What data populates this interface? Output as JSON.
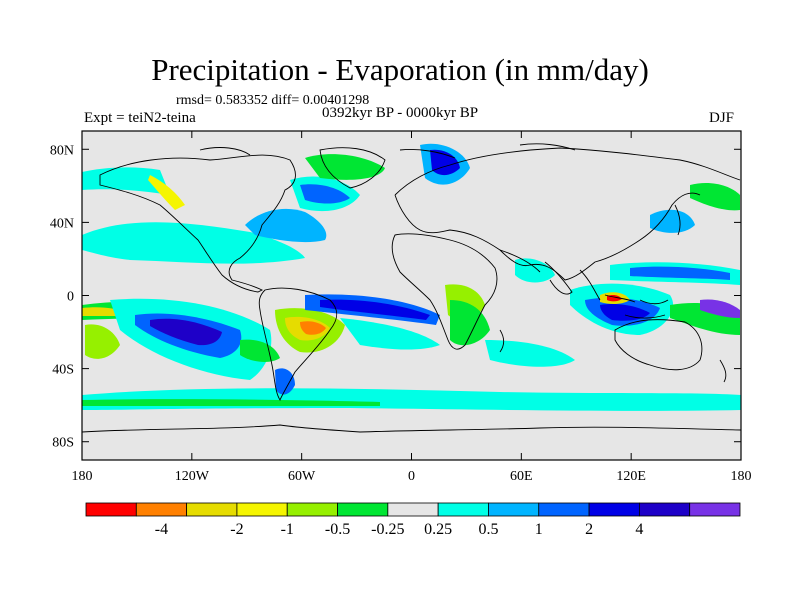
{
  "title": "Precipitation - Evaporation (in mm/day)",
  "stats": "rmsd= 0.583352 diff= 0.00401298",
  "expt": "Expt = teiN2-teina",
  "period": "0392kyr BP - 0000kyr BP",
  "season": "DJF",
  "map": {
    "background": "#e6e6e6",
    "lon_range": [
      -180,
      180
    ],
    "lat_range": [
      -90,
      90
    ],
    "y_ticks": [
      "80N",
      "40N",
      "0",
      "40S",
      "80S"
    ],
    "x_ticks": [
      "180",
      "120W",
      "60W",
      "0",
      "60E",
      "120E",
      "180"
    ]
  },
  "colorbar": {
    "colors": [
      "#ff0000",
      "#ff8000",
      "#e6dc00",
      "#f5f500",
      "#96f000",
      "#00e633",
      "#e6e6e6",
      "#00ffe6",
      "#00b4ff",
      "#0064ff",
      "#0000e6",
      "#1e00c8",
      "#7832e6"
    ],
    "labels": [
      "-4",
      "-2",
      "-1",
      "-0.5",
      "-0.25",
      "0.25",
      "0.5",
      "1",
      "2",
      "4"
    ]
  }
}
